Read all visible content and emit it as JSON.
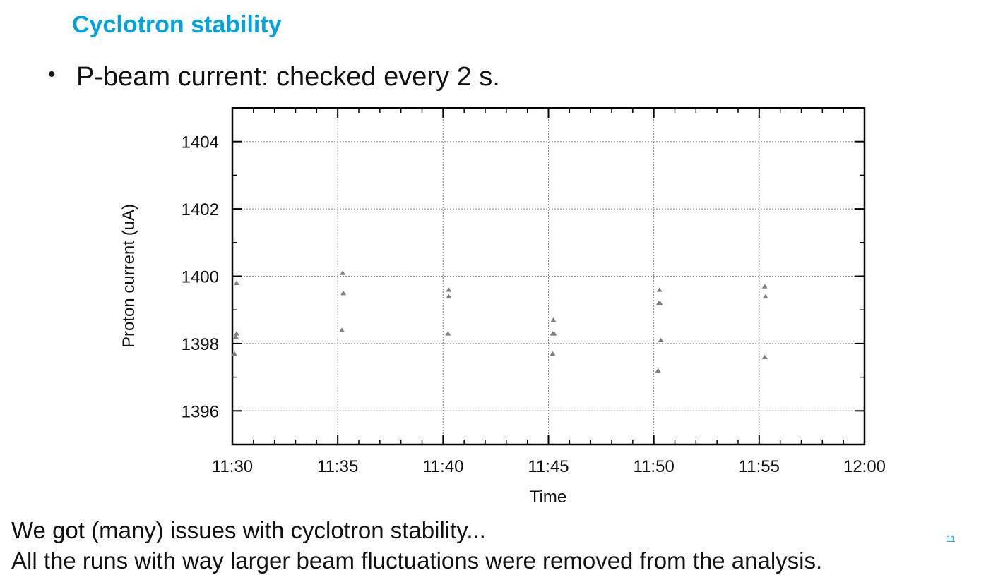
{
  "slide": {
    "title": "Cyclotron stability",
    "bullet": "P-beam current: checked every 2 s.",
    "footer_line_1": "We got (many) issues with cyclotron stability...",
    "footer_line_2": "All the runs with way larger beam fluctuations were removed from the analysis.",
    "page_number": "11"
  },
  "colors": {
    "title": "#00a3e0",
    "text": "#111111",
    "marker": "#808080",
    "grid": "#888888",
    "frame": "#000000"
  },
  "chart_data": {
    "type": "scatter",
    "title": "",
    "xlabel": "Time",
    "ylabel": "Proton current (uA)",
    "x_ticks": [
      "11:30",
      "11:35",
      "11:40",
      "11:45",
      "11:50",
      "11:55",
      "12:00"
    ],
    "y_ticks": [
      1396,
      1398,
      1400,
      1402,
      1404
    ],
    "xlim": [
      "11:30",
      "12:00"
    ],
    "ylim": [
      1395,
      1405
    ],
    "grid": true,
    "legend": "none",
    "marker": "triangle",
    "series": [
      {
        "points": [
          {
            "x": "11:30:12",
            "y": 1399.8
          },
          {
            "x": "11:30:12",
            "y": 1398.3
          },
          {
            "x": "11:30:10",
            "y": 1398.2
          },
          {
            "x": "11:30:06",
            "y": 1397.7
          },
          {
            "x": "11:35:14",
            "y": 1400.1
          },
          {
            "x": "11:35:16",
            "y": 1399.5
          },
          {
            "x": "11:35:12",
            "y": 1398.4
          },
          {
            "x": "11:40:16",
            "y": 1399.6
          },
          {
            "x": "11:40:16",
            "y": 1399.4
          },
          {
            "x": "11:40:14",
            "y": 1398.3
          },
          {
            "x": "11:45:14",
            "y": 1398.7
          },
          {
            "x": "11:45:12",
            "y": 1398.3
          },
          {
            "x": "11:45:16",
            "y": 1398.3
          },
          {
            "x": "11:45:12",
            "y": 1397.7
          },
          {
            "x": "11:50:16",
            "y": 1399.6
          },
          {
            "x": "11:50:14",
            "y": 1399.2
          },
          {
            "x": "11:50:18",
            "y": 1399.2
          },
          {
            "x": "11:50:20",
            "y": 1398.1
          },
          {
            "x": "11:50:12",
            "y": 1397.2
          },
          {
            "x": "11:55:16",
            "y": 1399.7
          },
          {
            "x": "11:55:18",
            "y": 1399.4
          },
          {
            "x": "11:55:16",
            "y": 1397.6
          }
        ]
      }
    ]
  }
}
